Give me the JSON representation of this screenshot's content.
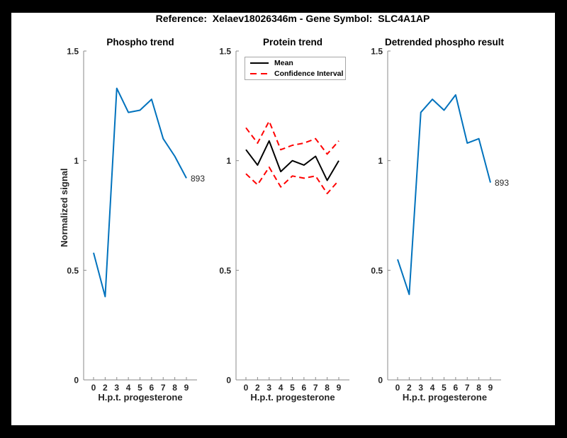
{
  "window": {
    "frame_color": "#000000",
    "canvas_color": "#ffffff"
  },
  "figure_title": "Reference:  Xelaev18026346m - Gene Symbol:  SLC4A1AP",
  "colors": {
    "signal_blue": "#0072BD",
    "mean_black": "#000000",
    "confidence_red": "#FF0000",
    "axis_gray": "#8a8a8a",
    "label_dark": "#262626"
  },
  "chart_data": [
    {
      "type": "line",
      "title": "Phospho trend",
      "xlabel": "H.p.t. progesterone",
      "ylabel": "Normalized signal",
      "x_tick_labels": [
        "0",
        "2",
        "3",
        "4",
        "5",
        "6",
        "7",
        "8",
        "9"
      ],
      "y_ticks": [
        0,
        0.5,
        1,
        1.5
      ],
      "y_tick_labels": [
        "0",
        "0.5",
        "1",
        "1.5"
      ],
      "ylim": [
        0,
        1.5
      ],
      "grid": false,
      "series": [
        {
          "name": "phospho-signal",
          "color": "#0072BD",
          "style": "solid",
          "values": [
            0.58,
            0.38,
            1.33,
            1.22,
            1.23,
            1.28,
            1.1,
            1.02,
            0.92
          ]
        }
      ],
      "end_label": "893"
    },
    {
      "type": "line",
      "title": "Protein trend",
      "xlabel": "H.p.t. progesterone",
      "ylabel": "",
      "x_tick_labels": [
        "0",
        "2",
        "3",
        "4",
        "5",
        "6",
        "7",
        "8",
        "9"
      ],
      "y_ticks": [
        0,
        0.5,
        1,
        1.5
      ],
      "y_tick_labels": [
        "0",
        "0.5",
        "1",
        "1.5"
      ],
      "ylim": [
        0,
        1.5
      ],
      "grid": false,
      "legend": {
        "position": "top-inside",
        "entries": [
          {
            "label": "Mean",
            "color": "#000000",
            "style": "solid"
          },
          {
            "label": "Confidence Interval",
            "color": "#FF0000",
            "style": "dashed"
          }
        ]
      },
      "series": [
        {
          "name": "mean",
          "color": "#000000",
          "style": "solid",
          "values": [
            1.05,
            0.98,
            1.09,
            0.95,
            1.0,
            0.98,
            1.02,
            0.91,
            1.0
          ]
        },
        {
          "name": "confidence-upper",
          "color": "#FF0000",
          "style": "dashed",
          "values": [
            1.15,
            1.08,
            1.18,
            1.05,
            1.07,
            1.08,
            1.1,
            1.03,
            1.09
          ]
        },
        {
          "name": "confidence-lower",
          "color": "#FF0000",
          "style": "dashed",
          "values": [
            0.94,
            0.89,
            0.97,
            0.88,
            0.93,
            0.92,
            0.93,
            0.85,
            0.91
          ]
        }
      ]
    },
    {
      "type": "line",
      "title": "Detrended phospho result",
      "xlabel": "H.p.t. progesterone",
      "ylabel": "",
      "x_tick_labels": [
        "0",
        "2",
        "3",
        "4",
        "5",
        "6",
        "7",
        "8",
        "9"
      ],
      "y_ticks": [
        0,
        0.5,
        1,
        1.5
      ],
      "y_tick_labels": [
        "0",
        "0.5",
        "1",
        "1.5"
      ],
      "ylim": [
        0,
        1.5
      ],
      "grid": false,
      "series": [
        {
          "name": "detrended-phospho-signal",
          "color": "#0072BD",
          "style": "solid",
          "values": [
            0.55,
            0.39,
            1.22,
            1.28,
            1.23,
            1.3,
            1.08,
            1.1,
            0.9
          ]
        }
      ],
      "end_label": "893"
    }
  ]
}
